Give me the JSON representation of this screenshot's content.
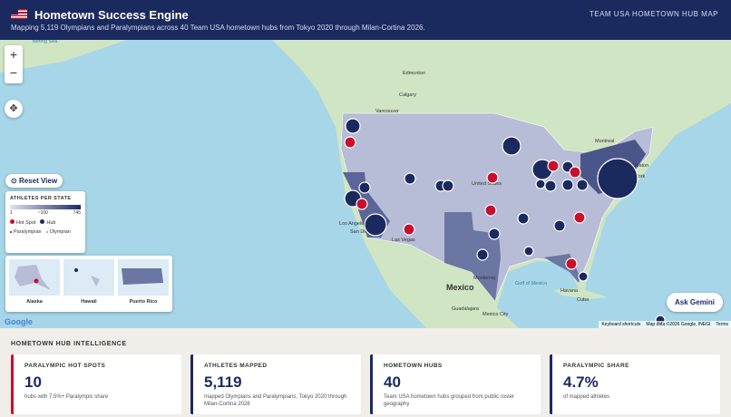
{
  "header": {
    "title": "Hometown Success Engine",
    "subtitle": "Mapping 5,119 Olympians and Paralympians across 40 Team USA hometown hubs from Tokyo 2020 through Milan-Cortina 2026.",
    "tag": "TEAM USA HOMETOWN HUB MAP"
  },
  "map": {
    "reset": "Reset View",
    "legend": {
      "title": "ATHLETES PER STATE",
      "scale": [
        "1",
        "~100",
        "745"
      ],
      "items": [
        "Hot Spot",
        "Hub",
        "Paralympian",
        "Olympian"
      ]
    },
    "insets": [
      "Alaska",
      "Hawaii",
      "Puerto Rico"
    ],
    "ask": "Ask Gemini",
    "logo": "Google",
    "attribution": [
      "Keyboard shortcuts",
      "Map data ©2026 Google, INEGI",
      "Terms"
    ],
    "labels": [
      "Bering Sea",
      "Edmonton",
      "Calgary",
      "Vancouver",
      "Montreal",
      "Toronto",
      "Boston",
      "New York",
      "Los Angeles",
      "San Diego",
      "Las Vegas",
      "United States",
      "Mexico",
      "Monterrey",
      "Gulf of Mexico",
      "Guadalajara",
      "Mexico City",
      "Havana",
      "Cuba"
    ]
  },
  "section": {
    "title": "HOMETOWN HUB INTELLIGENCE",
    "cards": [
      {
        "label": "PARALYMPIC HOT SPOTS",
        "value": "10",
        "note": "hubs with 7.5%+ Paralympic share"
      },
      {
        "label": "ATHLETES MAPPED",
        "value": "5,119",
        "note": "mapped Olympians and Paralympians, Tokyo 2020 through Milan-Cortina 2026"
      },
      {
        "label": "HOMETOWN HUBS",
        "value": "40",
        "note": "Team USA hometown hubs grouped from public roster geography"
      },
      {
        "label": "PARALYMPIC SHARE",
        "value": "4.7%",
        "note": "of mapped athletes"
      }
    ]
  }
}
